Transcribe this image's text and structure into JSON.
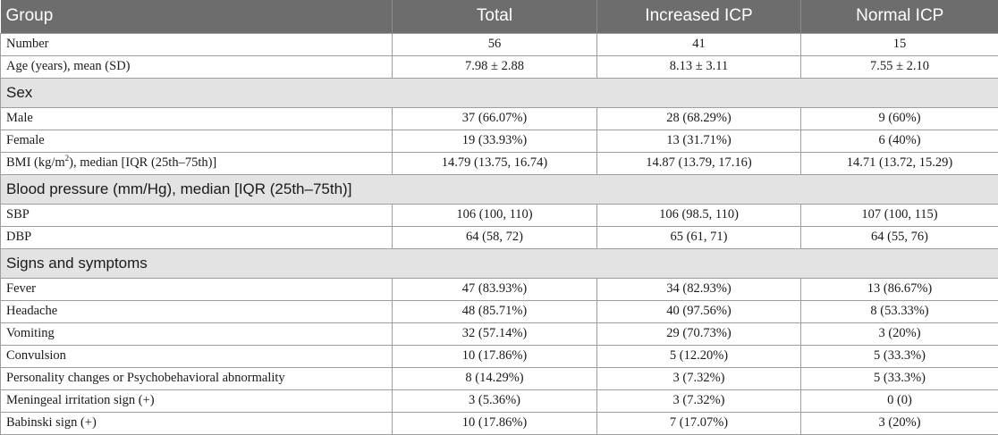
{
  "header": [
    "Group",
    "Total",
    "Increased ICP",
    "Normal ICP"
  ],
  "rows": [
    {
      "type": "data",
      "name": "row-number",
      "cells": [
        "Number",
        "56",
        "41",
        "15"
      ]
    },
    {
      "type": "data",
      "name": "row-age",
      "cells": [
        "Age (years), mean (SD)",
        "7.98 ± 2.88",
        "8.13 ± 3.11",
        "7.55 ± 2.10"
      ]
    },
    {
      "type": "section",
      "name": "section-sex",
      "label": "Sex"
    },
    {
      "type": "data",
      "name": "row-male",
      "cells": [
        "Male",
        "37 (66.07%)",
        "28 (68.29%)",
        "9 (60%)"
      ]
    },
    {
      "type": "data",
      "name": "row-female",
      "cells": [
        "Female",
        "19 (33.93%)",
        "13 (31.71%)",
        "6 (40%)"
      ]
    },
    {
      "type": "data",
      "name": "row-bmi",
      "label_pre": "BMI (kg/m",
      "label_sup": "2",
      "label_post": "), median [IQR (25th–75th)]",
      "cells": [
        "",
        "14.79 (13.75, 16.74)",
        "14.87 (13.79, 17.16)",
        "14.71 (13.72, 15.29)"
      ]
    },
    {
      "type": "section",
      "name": "section-blood-pressure",
      "label": "Blood pressure (mm/Hg), median [IQR (25th–75th)]"
    },
    {
      "type": "data",
      "name": "row-sbp",
      "cells": [
        "SBP",
        "106 (100, 110)",
        "106 (98.5, 110)",
        "107 (100, 115)"
      ]
    },
    {
      "type": "data",
      "name": "row-dbp",
      "cells": [
        "DBP",
        "64 (58, 72)",
        "65 (61, 71)",
        "64 (55, 76)"
      ]
    },
    {
      "type": "section",
      "name": "section-signs-symptoms",
      "label": "Signs and symptoms"
    },
    {
      "type": "data",
      "name": "row-fever",
      "cells": [
        "Fever",
        "47 (83.93%)",
        "34 (82.93%)",
        "13 (86.67%)"
      ]
    },
    {
      "type": "data",
      "name": "row-headache",
      "cells": [
        "Headache",
        "48 (85.71%)",
        "40 (97.56%)",
        "8 (53.33%)"
      ]
    },
    {
      "type": "data",
      "name": "row-vomiting",
      "cells": [
        "Vomiting",
        "32 (57.14%)",
        "29 (70.73%)",
        "3 (20%)"
      ]
    },
    {
      "type": "data",
      "name": "row-convulsion",
      "cells": [
        "Convulsion",
        "10 (17.86%)",
        "5 (12.20%)",
        "5 (33.3%)"
      ]
    },
    {
      "type": "data",
      "name": "row-personality-changes",
      "cells": [
        "Personality changes or Psychobehavioral abnormality",
        "8 (14.29%)",
        "3 (7.32%)",
        "5 (33.3%)"
      ]
    },
    {
      "type": "data",
      "name": "row-meningeal-irritation",
      "cells": [
        "Meningeal irritation sign (+)",
        "3 (5.36%)",
        "3 (7.32%)",
        "0 (0)"
      ]
    },
    {
      "type": "data",
      "name": "row-babinski",
      "cells": [
        "Babinski sign (+)",
        "10 (17.86%)",
        "7 (17.07%)",
        "3 (20%)"
      ]
    }
  ]
}
